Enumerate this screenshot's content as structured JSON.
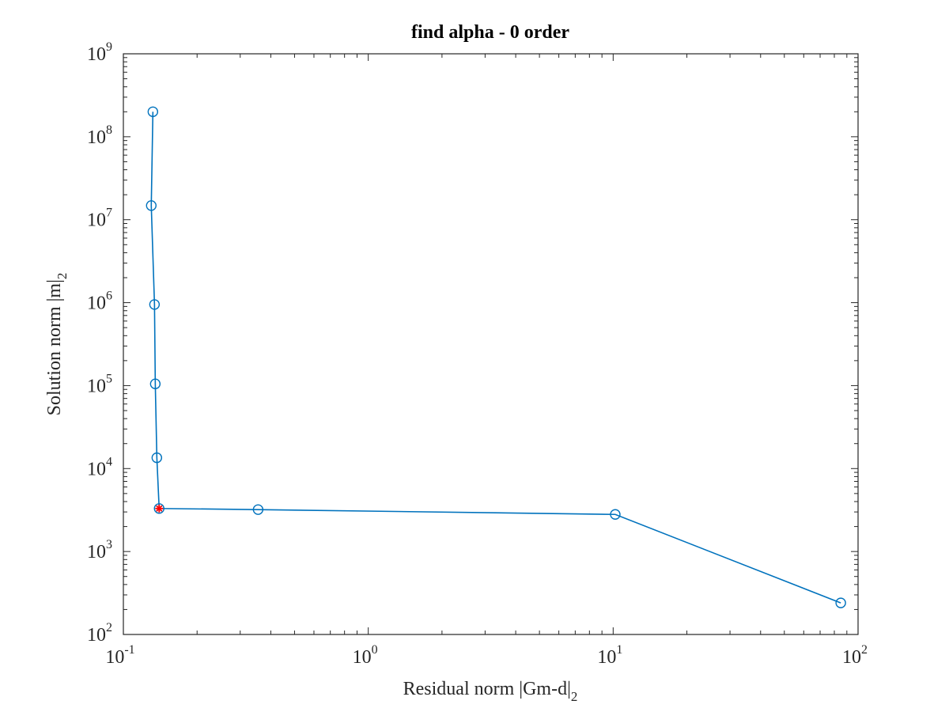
{
  "chart_data": {
    "type": "line",
    "title": "find alpha - 0 order",
    "xlabel": "Residual norm |Gm-d|",
    "xlabel_sub": "2",
    "ylabel": "Solution norm |m|",
    "ylabel_sub": "2",
    "xscale": "log",
    "yscale": "log",
    "xlim": [
      0.1,
      100
    ],
    "ylim": [
      100,
      1000000000
    ],
    "grid": false,
    "x_ticks": [
      {
        "value": 0.1,
        "base": "10",
        "exp": "-1"
      },
      {
        "value": 1,
        "base": "10",
        "exp": "0"
      },
      {
        "value": 10,
        "base": "10",
        "exp": "1"
      },
      {
        "value": 100,
        "base": "10",
        "exp": "2"
      }
    ],
    "y_ticks": [
      {
        "value": 100,
        "base": "10",
        "exp": "2"
      },
      {
        "value": 1000,
        "base": "10",
        "exp": "3"
      },
      {
        "value": 10000,
        "base": "10",
        "exp": "4"
      },
      {
        "value": 100000,
        "base": "10",
        "exp": "5"
      },
      {
        "value": 1000000,
        "base": "10",
        "exp": "6"
      },
      {
        "value": 10000000,
        "base": "10",
        "exp": "7"
      },
      {
        "value": 100000000,
        "base": "10",
        "exp": "8"
      },
      {
        "value": 1000000000,
        "base": "10",
        "exp": "9"
      }
    ],
    "series": [
      {
        "color": "#0072BD",
        "marker": "circle",
        "x": [
          0.132,
          0.13,
          0.134,
          0.135,
          0.137,
          0.14,
          0.355,
          10.2,
          85
        ],
        "y": [
          200000000,
          14800000,
          950000,
          105000,
          13500,
          3300,
          3200,
          2800,
          240
        ]
      }
    ],
    "highlight_point": {
      "x": 0.14,
      "y": 3300,
      "color": "#ff0000",
      "marker": "asterisk"
    }
  }
}
